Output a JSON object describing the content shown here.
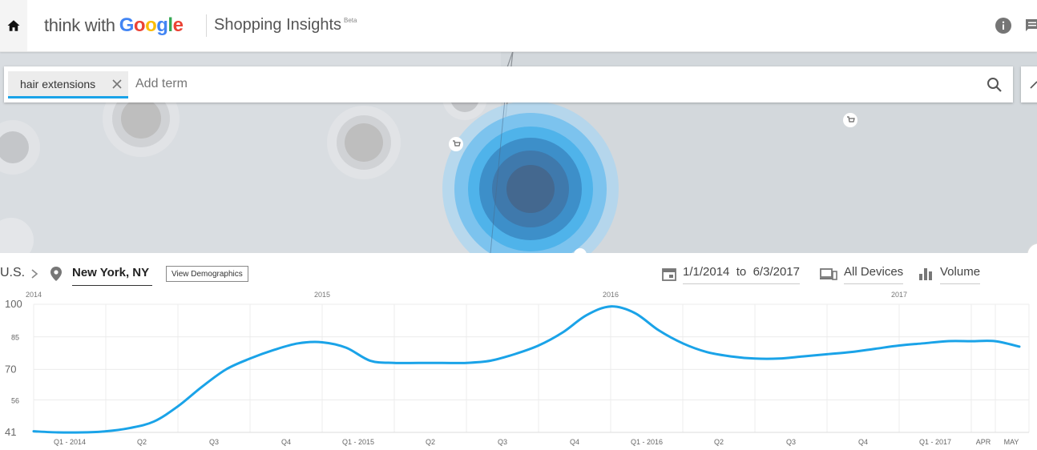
{
  "header": {
    "brand_think": "think with",
    "brand_google": [
      "G",
      "o",
      "o",
      "g",
      "l",
      "e"
    ],
    "brand_colors": [
      "#4285F4",
      "#EA4335",
      "#FBBC05",
      "#4285F4",
      "#34A853",
      "#EA4335"
    ],
    "app_title": "Shopping Insights",
    "beta": "Beta",
    "icons": [
      "home-icon",
      "info-icon",
      "feedback-icon"
    ]
  },
  "search": {
    "chip_label": "hair extensions",
    "placeholder": "Add term",
    "icons": [
      "close-icon",
      "search-icon"
    ],
    "accent": "#1aa3e8"
  },
  "location": {
    "country": "U.S.",
    "city": "New York, NY",
    "view_demographics": "View Demographics"
  },
  "filters": {
    "date_from": "1/1/2014",
    "date_to_label": "to",
    "date_to": "6/3/2017",
    "devices": "All Devices",
    "metric": "Volume"
  },
  "chart_data": {
    "type": "line",
    "title": "",
    "year_labels": [
      "2014",
      "2015",
      "2016",
      "2017"
    ],
    "y_ticks": [
      41,
      56,
      70,
      85,
      100
    ],
    "ylim": [
      41,
      100
    ],
    "x_labels": [
      "Q1 - 2014",
      "Q2",
      "Q3",
      "Q4",
      "Q1 - 2015",
      "Q2",
      "Q3",
      "Q4",
      "Q1 - 2016",
      "Q2",
      "Q3",
      "Q4",
      "Q1 - 2017",
      "APR",
      "MAY"
    ],
    "series": [
      {
        "color": "#1aa3e8",
        "x": [
          "2014-01",
          "2014-02",
          "2014-03",
          "2014-04",
          "2014-05",
          "2014-06",
          "2014-07",
          "2014-08",
          "2014-09",
          "2014-10",
          "2014-11",
          "2014-12",
          "2015-01",
          "2015-02",
          "2015-03",
          "2015-04",
          "2015-05",
          "2015-06",
          "2015-07",
          "2015-08",
          "2015-09",
          "2015-10",
          "2015-11",
          "2015-12",
          "2016-01",
          "2016-02",
          "2016-03",
          "2016-04",
          "2016-05",
          "2016-06",
          "2016-07",
          "2016-08",
          "2016-09",
          "2016-10",
          "2016-11",
          "2016-12",
          "2017-01",
          "2017-02",
          "2017-03",
          "2017-04",
          "2017-05",
          "2017-06"
        ],
        "values": [
          41.5,
          41,
          41,
          41.5,
          43,
          46,
          53,
          62,
          70,
          75,
          79,
          82,
          82.5,
          80,
          74,
          73,
          73,
          73,
          73,
          74,
          77,
          81,
          87,
          95,
          99,
          96,
          88,
          82,
          78,
          76,
          75,
          75,
          76,
          77,
          78,
          79.5,
          81,
          82,
          83,
          83,
          83,
          80.5
        ]
      }
    ],
    "grid": true
  }
}
